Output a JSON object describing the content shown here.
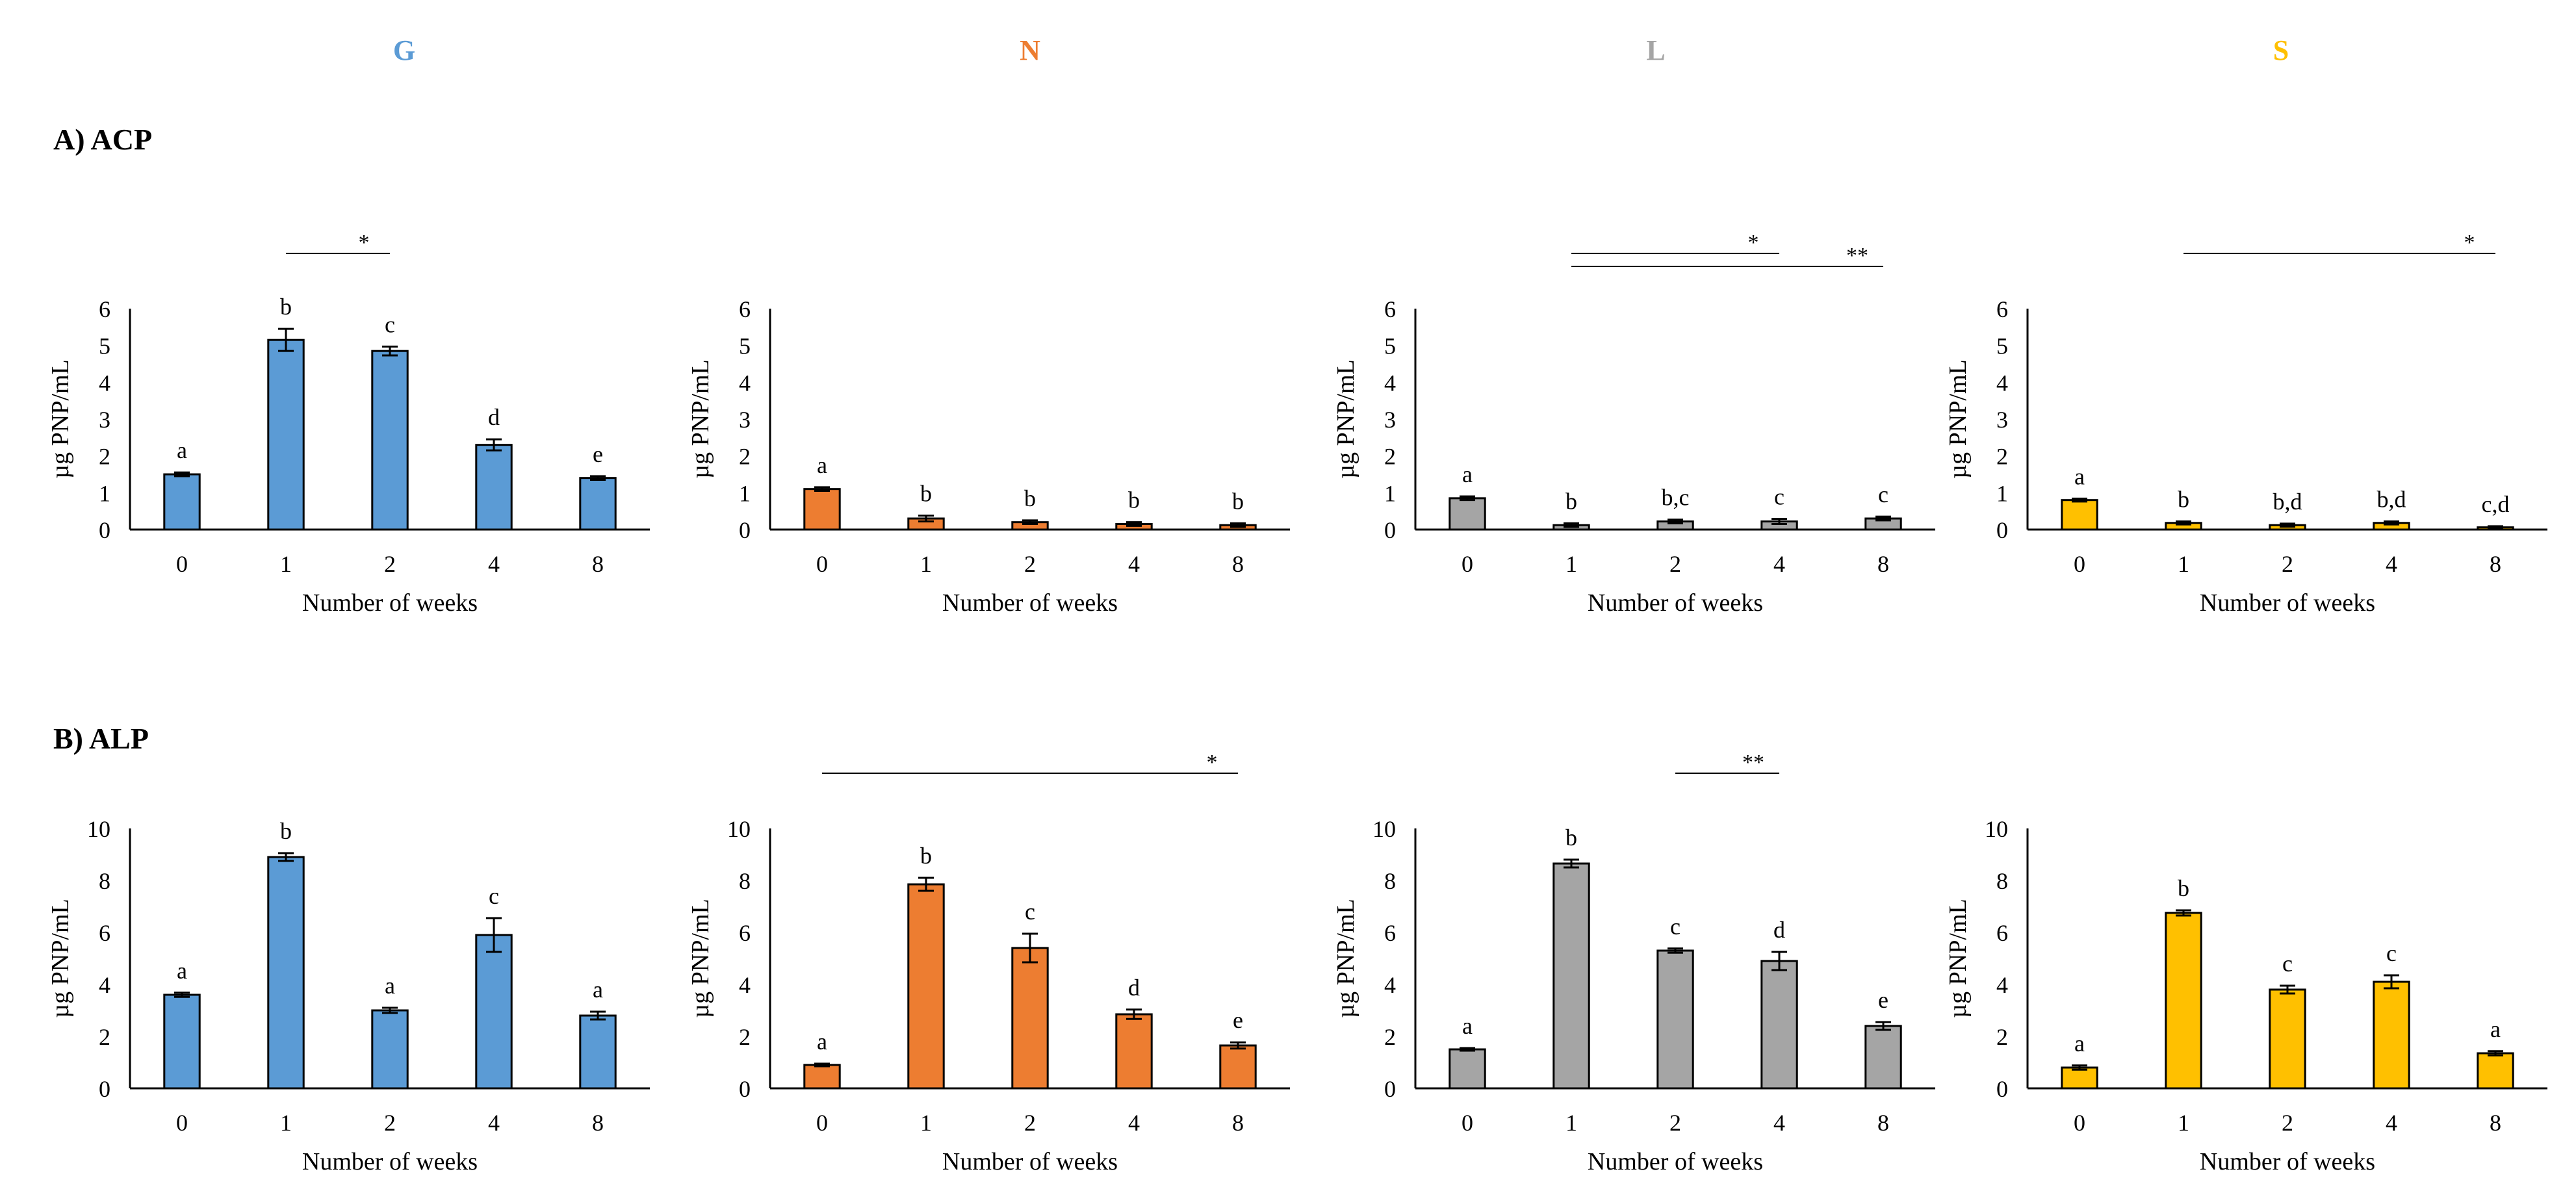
{
  "columns": [
    {
      "key": "G",
      "label": "G",
      "color": "#5B9BD5"
    },
    {
      "key": "N",
      "label": "N",
      "color": "#ED7D31"
    },
    {
      "key": "L",
      "label": "L",
      "color": "#A5A5A5"
    },
    {
      "key": "S",
      "label": "S",
      "color": "#FFC000"
    }
  ],
  "sections": [
    {
      "key": "A",
      "label": "A) ACP"
    },
    {
      "key": "B",
      "label": "B) ALP"
    }
  ],
  "chart_data": [
    {
      "type": "bar",
      "section": "A) ACP",
      "group": "G",
      "color": "#5B9BD5",
      "categories": [
        "0",
        "1",
        "2",
        "4",
        "8"
      ],
      "values": [
        1.5,
        5.15,
        4.85,
        2.3,
        1.4
      ],
      "errors": [
        0.05,
        0.3,
        0.12,
        0.15,
        0.05
      ],
      "letters": [
        "a",
        "b",
        "c",
        "d",
        "e"
      ],
      "ylim": [
        0,
        6
      ],
      "yticks": [
        "0",
        "1",
        "2",
        "3",
        "4",
        "5",
        "6"
      ],
      "ylabel": "µg PNP/mL",
      "xlabel": "Number of weeks",
      "significance": [
        {
          "from": "1",
          "to": "2",
          "label": "*"
        }
      ]
    },
    {
      "type": "bar",
      "section": "A) ACP",
      "group": "N",
      "color": "#ED7D31",
      "categories": [
        "0",
        "1",
        "2",
        "4",
        "8"
      ],
      "values": [
        1.1,
        0.3,
        0.2,
        0.15,
        0.12
      ],
      "errors": [
        0.05,
        0.08,
        0.05,
        0.05,
        0.05
      ],
      "letters": [
        "a",
        "b",
        "b",
        "b",
        "b"
      ],
      "ylim": [
        0,
        6
      ],
      "yticks": [
        "0",
        "1",
        "2",
        "3",
        "4",
        "5",
        "6"
      ],
      "ylabel": "µg PNP/mL",
      "xlabel": "Number of weeks",
      "significance": []
    },
    {
      "type": "bar",
      "section": "A) ACP",
      "group": "L",
      "color": "#A5A5A5",
      "categories": [
        "0",
        "1",
        "2",
        "4",
        "8"
      ],
      "values": [
        0.85,
        0.12,
        0.22,
        0.22,
        0.3
      ],
      "errors": [
        0.05,
        0.05,
        0.05,
        0.07,
        0.05
      ],
      "letters": [
        "a",
        "b",
        "b,c",
        "c",
        "c"
      ],
      "ylim": [
        0,
        6
      ],
      "yticks": [
        "0",
        "1",
        "2",
        "3",
        "4",
        "5",
        "6"
      ],
      "ylabel": "µg PNP/mL",
      "xlabel": "Number of weeks",
      "significance": [
        {
          "from": "1",
          "to": "4",
          "label": "*"
        },
        {
          "from": "1",
          "to": "8",
          "label": "**"
        }
      ]
    },
    {
      "type": "bar",
      "section": "A) ACP",
      "group": "S",
      "color": "#FFC000",
      "categories": [
        "0",
        "1",
        "2",
        "4",
        "8"
      ],
      "values": [
        0.8,
        0.18,
        0.12,
        0.18,
        0.06
      ],
      "errors": [
        0.04,
        0.04,
        0.04,
        0.04,
        0.03
      ],
      "letters": [
        "a",
        "b",
        "b,d",
        "b,d",
        "c,d"
      ],
      "ylim": [
        0,
        6
      ],
      "yticks": [
        "0",
        "1",
        "2",
        "3",
        "4",
        "5",
        "6"
      ],
      "ylabel": "µg PNP/mL",
      "xlabel": "Number of weeks",
      "significance": [
        {
          "from": "1",
          "to": "8",
          "label": "*"
        }
      ]
    },
    {
      "type": "bar",
      "section": "B) ALP",
      "group": "G",
      "color": "#5B9BD5",
      "categories": [
        "0",
        "1",
        "2",
        "4",
        "8"
      ],
      "values": [
        3.6,
        8.9,
        3.0,
        5.9,
        2.8
      ],
      "errors": [
        0.08,
        0.15,
        0.1,
        0.65,
        0.15
      ],
      "letters": [
        "a",
        "b",
        "a",
        "c",
        "a"
      ],
      "ylim": [
        0,
        10
      ],
      "yticks": [
        "0",
        "2",
        "4",
        "6",
        "8",
        "10"
      ],
      "ylabel": "µg PNP/mL",
      "xlabel": "Number of weeks",
      "significance": []
    },
    {
      "type": "bar",
      "section": "B) ALP",
      "group": "N",
      "color": "#ED7D31",
      "categories": [
        "0",
        "1",
        "2",
        "4",
        "8"
      ],
      "values": [
        0.9,
        7.85,
        5.4,
        2.85,
        1.65
      ],
      "errors": [
        0.05,
        0.25,
        0.55,
        0.18,
        0.12
      ],
      "letters": [
        "a",
        "b",
        "c",
        "d",
        "e"
      ],
      "ylim": [
        0,
        10
      ],
      "yticks": [
        "0",
        "2",
        "4",
        "6",
        "8",
        "10"
      ],
      "ylabel": "µg PNP/mL",
      "xlabel": "Number of weeks",
      "significance": [
        {
          "from": "0",
          "to": "8",
          "label": "*"
        }
      ]
    },
    {
      "type": "bar",
      "section": "B) ALP",
      "group": "L",
      "color": "#A5A5A5",
      "categories": [
        "0",
        "1",
        "2",
        "4",
        "8"
      ],
      "values": [
        1.5,
        8.65,
        5.3,
        4.9,
        2.4
      ],
      "errors": [
        0.05,
        0.15,
        0.08,
        0.35,
        0.15
      ],
      "letters": [
        "a",
        "b",
        "c",
        "d",
        "e"
      ],
      "ylim": [
        0,
        10
      ],
      "yticks": [
        "0",
        "2",
        "4",
        "6",
        "8",
        "10"
      ],
      "ylabel": "µg PNP/mL",
      "xlabel": "Number of weeks",
      "significance": [
        {
          "from": "2",
          "to": "4",
          "label": "**"
        }
      ]
    },
    {
      "type": "bar",
      "section": "B) ALP",
      "group": "S",
      "color": "#FFC000",
      "categories": [
        "0",
        "1",
        "2",
        "4",
        "8"
      ],
      "values": [
        0.8,
        6.75,
        3.8,
        4.1,
        1.35
      ],
      "errors": [
        0.08,
        0.1,
        0.15,
        0.25,
        0.08
      ],
      "letters": [
        "a",
        "b",
        "c",
        "c",
        "a"
      ],
      "ylim": [
        0,
        10
      ],
      "yticks": [
        "0",
        "2",
        "4",
        "6",
        "8",
        "10"
      ],
      "ylabel": "µg PNP/mL",
      "xlabel": "Number of weeks",
      "significance": []
    }
  ]
}
